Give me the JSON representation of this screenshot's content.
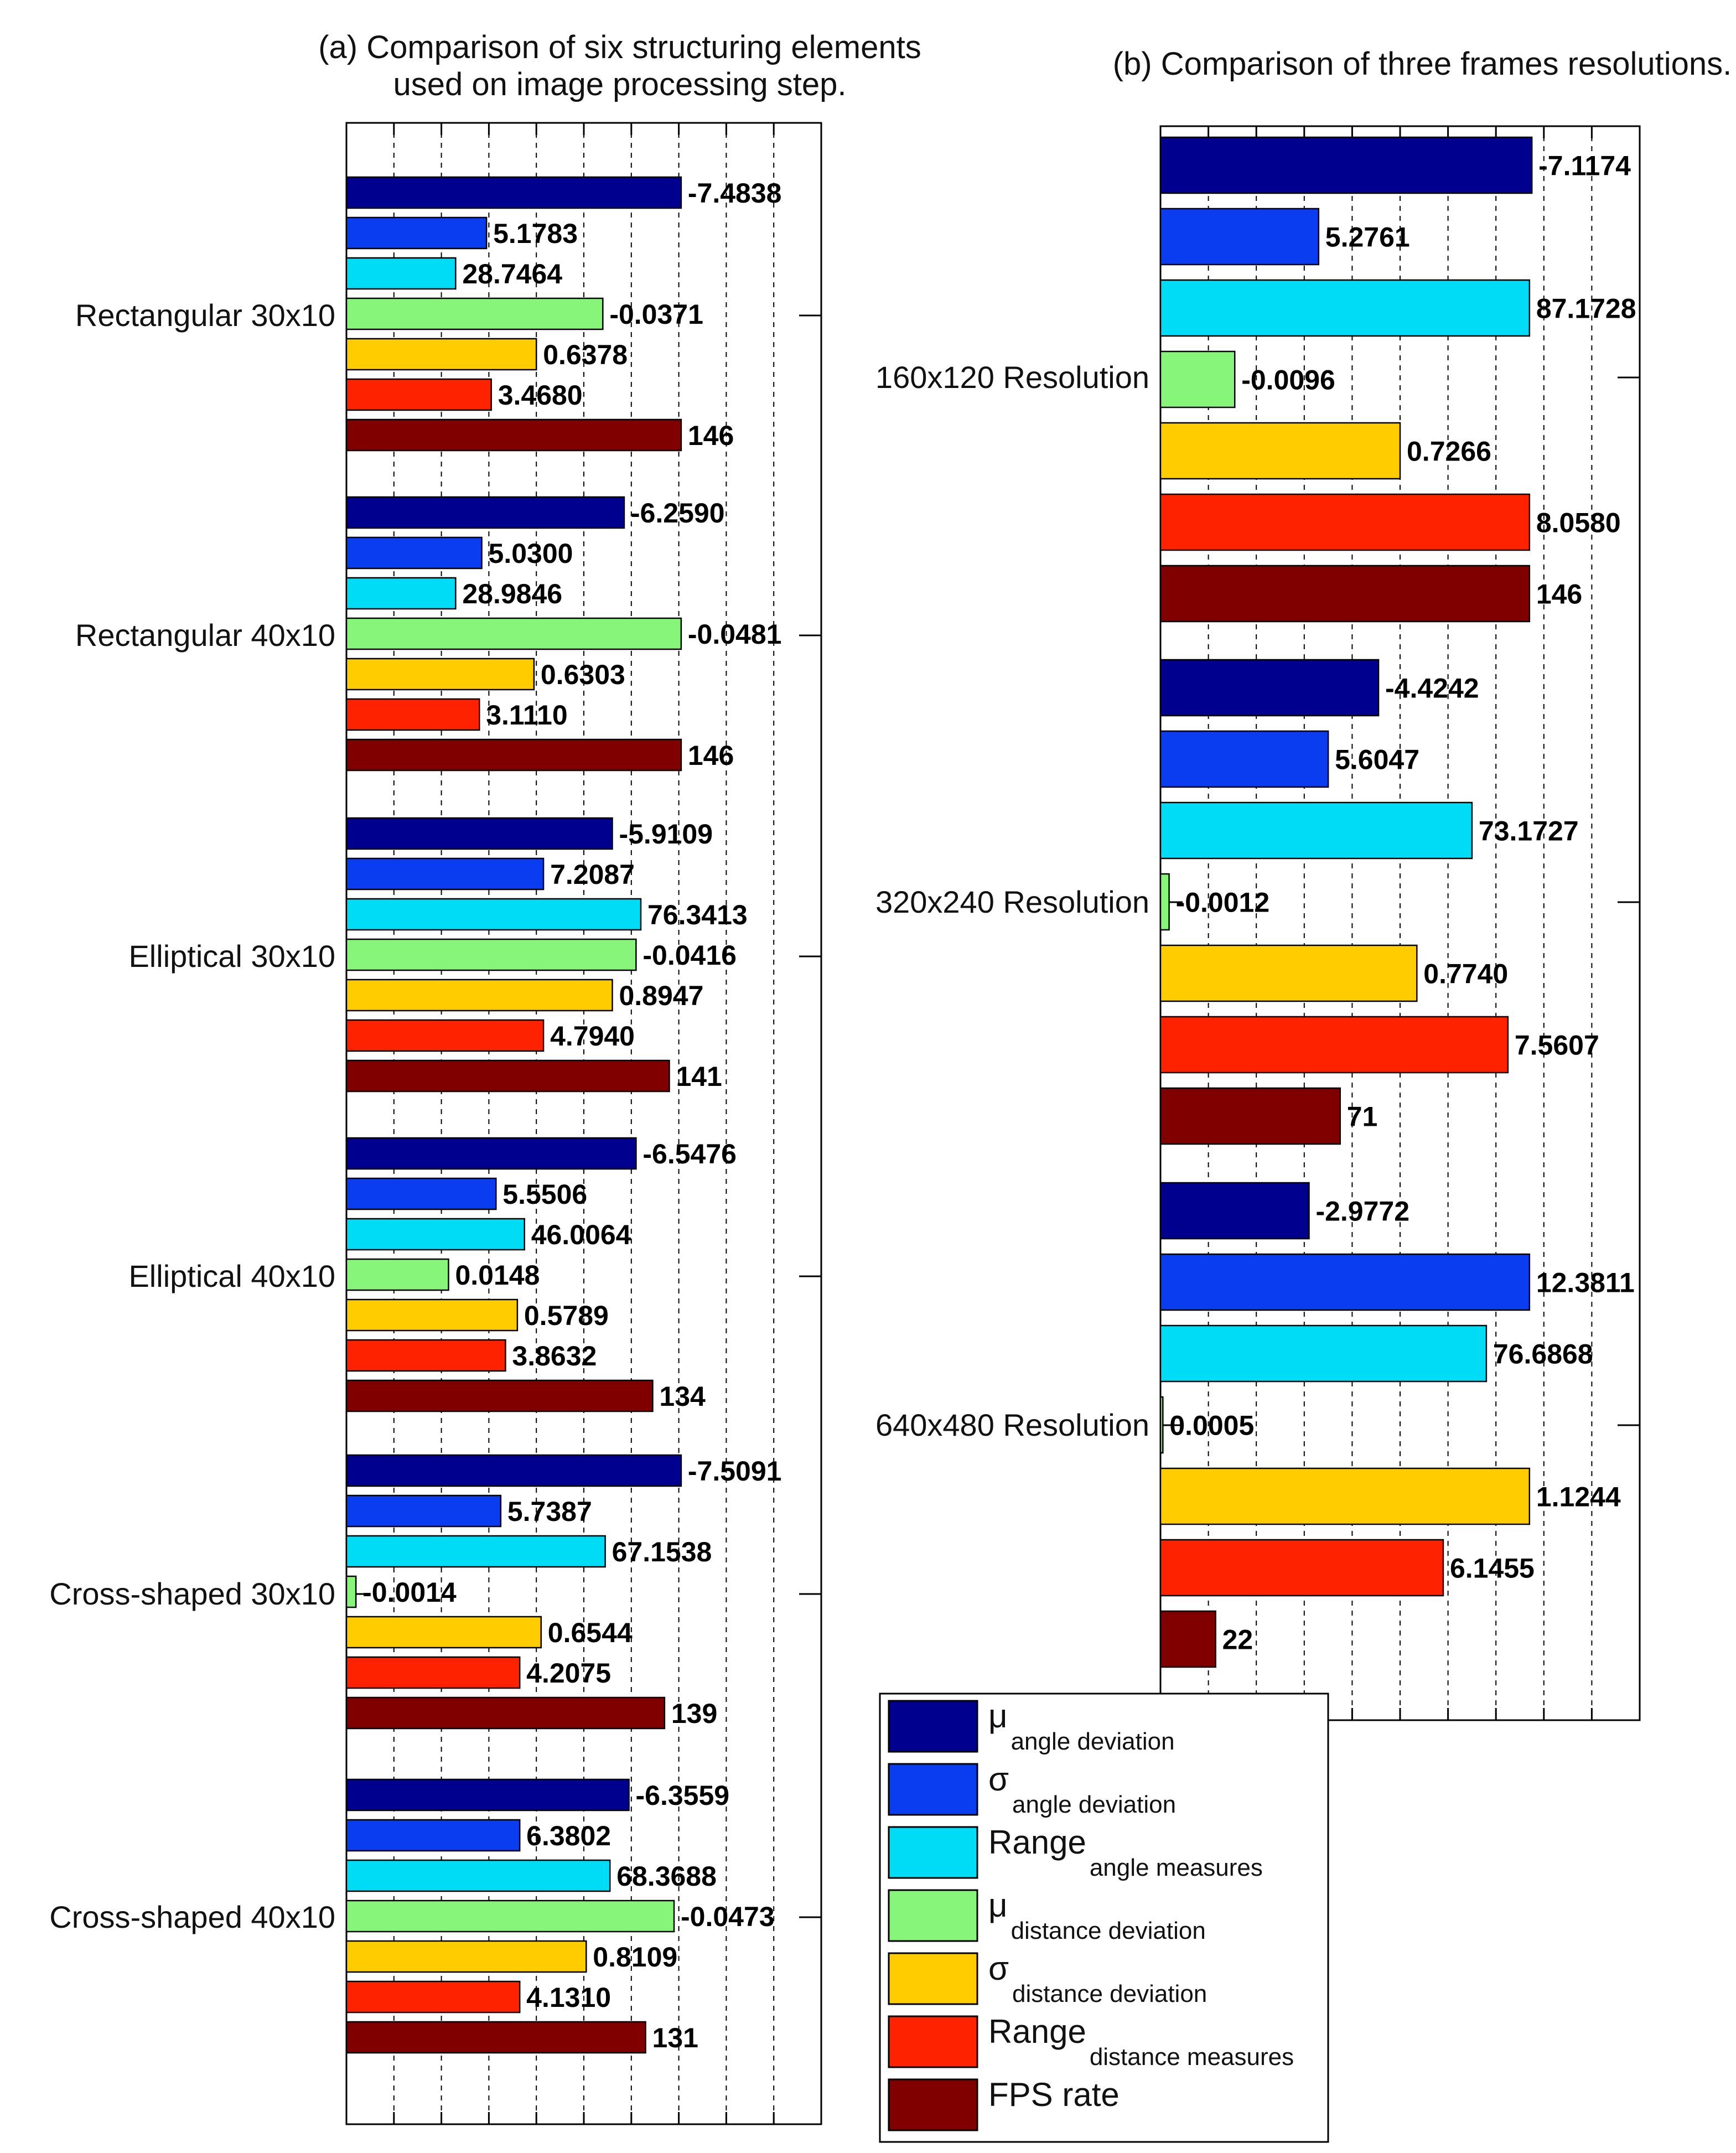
{
  "colors": {
    "mu_angle": "#00008F",
    "sigma_angle": "#0A3CF0",
    "range_angle": "#00DCF5",
    "mu_distance": "#87F57A",
    "sigma_distance": "#FFCC00",
    "range_distance": "#FF2200",
    "fps": "#800000"
  },
  "legend": {
    "placement": "bottom-right",
    "items": [
      {
        "symbol": "μ",
        "subscript": "angle deviation",
        "color": "#00008F"
      },
      {
        "symbol": "σ",
        "subscript": "angle deviation",
        "color": "#0A3CF0"
      },
      {
        "symbol": "Range",
        "subscript": "angle measures",
        "color": "#00DCF5"
      },
      {
        "symbol": "μ",
        "subscript": "distance deviation",
        "color": "#87F57A"
      },
      {
        "symbol": "σ",
        "subscript": "distance deviation",
        "color": "#FFCC00"
      },
      {
        "symbol": "Range",
        "subscript": "distance measures",
        "color": "#FF2200"
      },
      {
        "symbol": "FPS rate",
        "subscript": "",
        "color": "#800000"
      }
    ]
  },
  "chart_data": [
    {
      "type": "bar",
      "orientation": "horizontal",
      "title_lines": [
        "(a) Comparison of six structuring elements",
        "used on image processing step."
      ],
      "categories": [
        "Rectangular 30x10",
        "Rectangular 40x10",
        "Elliptical 30x10",
        "Elliptical 40x10",
        "Cross-shaped 30x10",
        "Cross-shaped 40x10"
      ],
      "grid": true,
      "groups": [
        {
          "labels": [
            "-7.4838",
            "5.1783",
            "28.7464",
            "-0.0371",
            "0.6378",
            "3.4680",
            "146"
          ],
          "bar_fraction": [
            0.705,
            0.295,
            0.23,
            0.54,
            0.4,
            0.305,
            0.705
          ]
        },
        {
          "labels": [
            "-6.2590",
            "5.0300",
            "28.9846",
            "-0.0481",
            "0.6303",
            "3.1110",
            "146"
          ],
          "bar_fraction": [
            0.585,
            0.285,
            0.23,
            0.705,
            0.395,
            0.28,
            0.705
          ]
        },
        {
          "labels": [
            "-5.9109",
            "7.2087",
            "76.3413",
            "-0.0416",
            "0.8947",
            "4.7940",
            "141"
          ],
          "bar_fraction": [
            0.56,
            0.415,
            0.62,
            0.61,
            0.56,
            0.415,
            0.68
          ]
        },
        {
          "labels": [
            "-6.5476",
            "5.5506",
            "46.0064",
            "0.0148",
            "0.5789",
            "3.8632",
            "134"
          ],
          "bar_fraction": [
            0.61,
            0.315,
            0.375,
            0.215,
            0.36,
            0.335,
            0.645
          ]
        },
        {
          "labels": [
            "-7.5091",
            "5.7387",
            "67.1538",
            "-0.0014",
            "0.6544",
            "4.2075",
            "139"
          ],
          "bar_fraction": [
            0.705,
            0.325,
            0.545,
            0.02,
            0.41,
            0.365,
            0.67
          ]
        },
        {
          "labels": [
            "-6.3559",
            "6.3802",
            "68.3688",
            "-0.0473",
            "0.8109",
            "4.1310",
            "131"
          ],
          "bar_fraction": [
            0.595,
            0.365,
            0.555,
            0.69,
            0.505,
            0.365,
            0.63
          ]
        }
      ]
    },
    {
      "type": "bar",
      "orientation": "horizontal",
      "title_lines": [
        "(b) Comparison of three frames resolutions."
      ],
      "categories": [
        "160x120 Resolution",
        "320x240 Resolution",
        "640x480 Resolution"
      ],
      "grid": true,
      "groups": [
        {
          "labels": [
            "-7.1174",
            "5.2761",
            "87.1728",
            "-0.0096",
            "0.7266",
            "8.0580",
            "146"
          ],
          "bar_fraction": [
            0.775,
            0.33,
            0.77,
            0.155,
            0.5,
            0.77,
            0.77
          ]
        },
        {
          "labels": [
            "-4.4242",
            "5.6047",
            "73.1727",
            "-0.0012",
            "0.7740",
            "7.5607",
            "71"
          ],
          "bar_fraction": [
            0.455,
            0.35,
            0.65,
            0.018,
            0.535,
            0.725,
            0.375
          ]
        },
        {
          "labels": [
            "-2.9772",
            "12.3811",
            "76.6868",
            "0.0005",
            "1.1244",
            "6.1455",
            "22"
          ],
          "bar_fraction": [
            0.31,
            0.77,
            0.68,
            0.005,
            0.77,
            0.59,
            0.115
          ]
        }
      ]
    }
  ]
}
